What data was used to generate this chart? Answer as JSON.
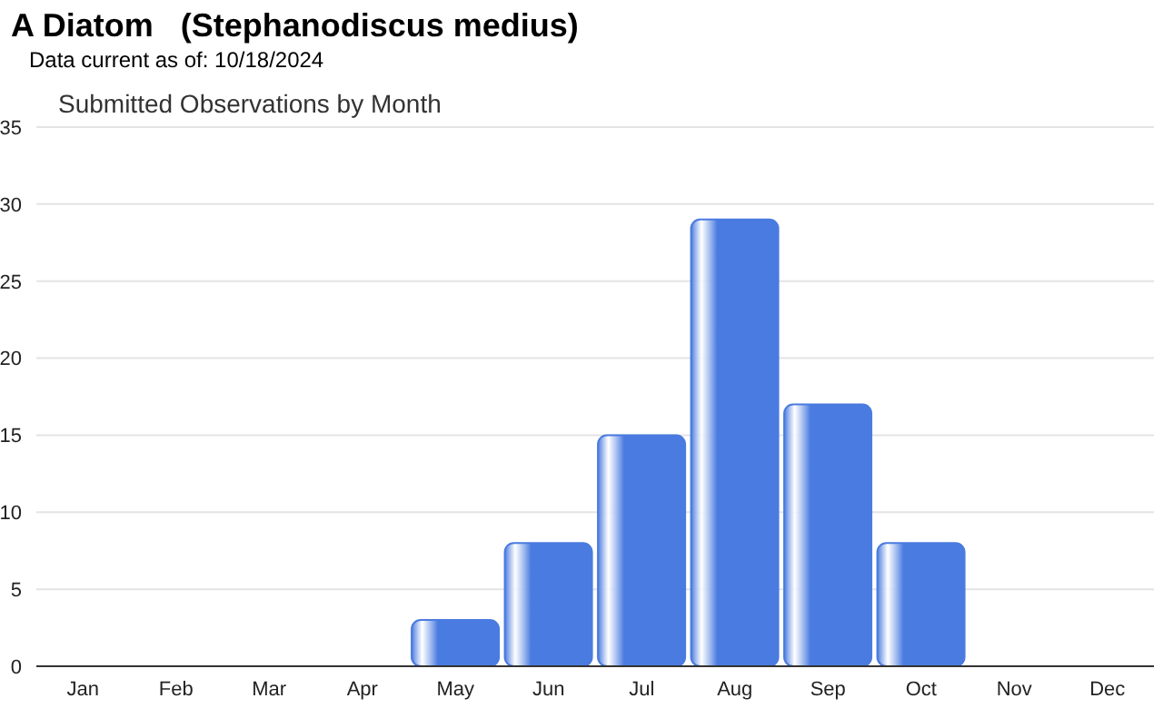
{
  "chart_data": {
    "type": "bar",
    "title": "A Diatom   (Stephanodiscus medius)",
    "subtitle": "Data current as of: 10/18/2024",
    "annotations": [
      "Submitted Observations by Month"
    ],
    "categories": [
      "Jan",
      "Feb",
      "Mar",
      "Apr",
      "May",
      "Jun",
      "Jul",
      "Aug",
      "Sep",
      "Oct",
      "Nov",
      "Dec"
    ],
    "values": [
      0,
      0,
      0,
      0,
      3,
      8,
      15,
      29,
      17,
      8,
      0,
      0
    ],
    "color": "#4a7be0",
    "ylim": [
      0,
      35
    ],
    "yticks": [
      0,
      5,
      10,
      15,
      20,
      25,
      30,
      35
    ],
    "grid": "y",
    "legend": false
  }
}
